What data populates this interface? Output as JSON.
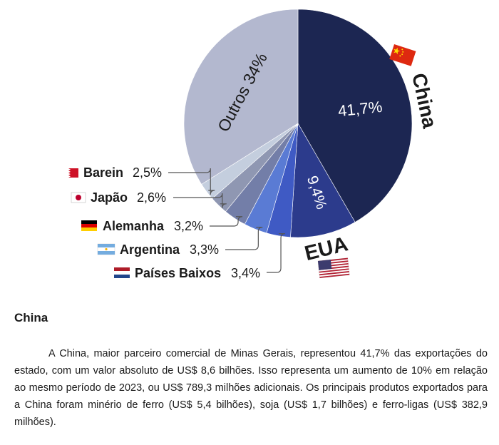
{
  "chart_data": {
    "type": "pie",
    "categories": [
      "China",
      "EUA",
      "Países Baixos",
      "Argentina",
      "Alemanha",
      "Japão",
      "Barein",
      "Outros"
    ],
    "values": [
      41.7,
      9.4,
      3.4,
      3.3,
      3.2,
      2.6,
      2.5,
      34
    ],
    "value_labels": [
      "41,7%",
      "9,4%",
      "3,4%",
      "3,3%",
      "3,2%",
      "2,6%",
      "2,5%",
      "34%"
    ],
    "label_texts": [
      "China",
      "EUA",
      "Países Baixos",
      "Argentina",
      "Alemanha",
      "Japão",
      "Barein",
      "Outros"
    ],
    "outros_label": "Outros 34%",
    "colors": [
      "#1c2652",
      "#2c3b8c",
      "#3f5ac4",
      "#5a7bd4",
      "#737ea8",
      "#8f97b2",
      "#c4cede",
      "#b3b8cf"
    ],
    "flags": [
      "china-flag-icon",
      "usa-flag-icon",
      "netherlands-flag-icon",
      "argentina-flag-icon",
      "germany-flag-icon",
      "japan-flag-icon",
      "bahrain-flag-icon"
    ]
  },
  "section": {
    "title": "China",
    "paragraph": "A China, maior parceiro comercial de Minas Gerais, representou 41,7% das exportações do estado, com um valor absoluto de US$ 8,6 bilhões. Isso representa um aumento de 10% em relação ao mesmo período de 2023, ou US$ 789,3 milhões adicionais. Os principais produtos exportados para a China foram minério de ferro (US$ 5,4 bilhões), soja (US$ 1,7 bilhões) e ferro-ligas (US$ 382,9 milhões)."
  }
}
